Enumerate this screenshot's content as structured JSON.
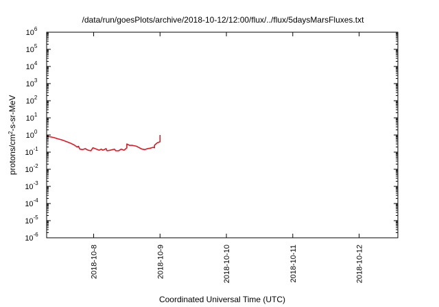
{
  "chart_data": {
    "type": "line",
    "title": "/data/run/goesPlots/archive/2018-10-12/12:00/flux/../flux/5daysMarsFluxes.txt",
    "xlabel": "Coordinated Universal Time (UTC)",
    "ylabel_parts": {
      "base": "protons/cm",
      "sup": "2",
      "rest": "-s-sr-MeV"
    },
    "y_scale": "log",
    "ylim": [
      1e-06,
      1000000.0
    ],
    "y_ticks": [
      {
        "value": 1e-06,
        "base": "10",
        "exp": "-6"
      },
      {
        "value": 1e-05,
        "base": "10",
        "exp": "-5"
      },
      {
        "value": 0.0001,
        "base": "10",
        "exp": "-4"
      },
      {
        "value": 0.001,
        "base": "10",
        "exp": "-3"
      },
      {
        "value": 0.01,
        "base": "10",
        "exp": "-2"
      },
      {
        "value": 0.1,
        "base": "10",
        "exp": "-1"
      },
      {
        "value": 1,
        "base": "10",
        "exp": "0"
      },
      {
        "value": 10,
        "base": "10",
        "exp": "1"
      },
      {
        "value": 100,
        "base": "10",
        "exp": "2"
      },
      {
        "value": 1000,
        "base": "10",
        "exp": "3"
      },
      {
        "value": 10000,
        "base": "10",
        "exp": "4"
      },
      {
        "value": 100000,
        "base": "10",
        "exp": "5"
      },
      {
        "value": 1000000,
        "base": "10",
        "exp": "6"
      }
    ],
    "xlim": [
      "2018-10-07 07:00",
      "2018-10-12 14:00"
    ],
    "x_ticks": [
      {
        "value": "2018-10-08 00:00",
        "label": "2018-10-8"
      },
      {
        "value": "2018-10-09 00:00",
        "label": "2018-10-9"
      },
      {
        "value": "2018-10-10 00:00",
        "label": "2018-10-10"
      },
      {
        "value": "2018-10-11 00:00",
        "label": "2018-10-11"
      },
      {
        "value": "2018-10-12 00:00",
        "label": "2018-10-12"
      }
    ],
    "grid": false,
    "series": [
      {
        "color": "#e8141c",
        "points": [
          [
            "2018-10-07 07:00",
            0.85
          ],
          [
            "2018-10-07 08:00",
            0.8
          ],
          [
            "2018-10-07 09:30",
            0.72
          ],
          [
            "2018-10-07 11:00",
            0.6
          ],
          [
            "2018-10-07 12:30",
            0.52
          ],
          [
            "2018-10-07 14:00",
            0.42
          ],
          [
            "2018-10-07 15:30",
            0.34
          ],
          [
            "2018-10-07 17:00",
            0.26
          ],
          [
            "2018-10-07 18:00",
            0.2
          ],
          [
            "2018-10-07 18:30",
            0.22
          ],
          [
            "2018-10-07 19:00",
            0.15
          ],
          [
            "2018-10-07 20:00",
            0.14
          ],
          [
            "2018-10-07 21:00",
            0.16
          ],
          [
            "2018-10-07 22:00",
            0.13
          ],
          [
            "2018-10-07 23:00",
            0.12
          ],
          [
            "2018-10-07 23:45",
            0.18
          ],
          [
            "2018-10-08 01:00",
            0.15
          ],
          [
            "2018-10-08 02:00",
            0.13
          ],
          [
            "2018-10-08 02:45",
            0.15
          ],
          [
            "2018-10-08 03:20",
            0.13
          ],
          [
            "2018-10-08 04:30",
            0.16
          ],
          [
            "2018-10-08 04:50",
            0.12
          ],
          [
            "2018-10-08 06:00",
            0.13
          ],
          [
            "2018-10-08 07:30",
            0.15
          ],
          [
            "2018-10-08 08:00",
            0.12
          ],
          [
            "2018-10-08 09:00",
            0.12
          ],
          [
            "2018-10-08 10:00",
            0.15
          ],
          [
            "2018-10-08 11:00",
            0.13
          ],
          [
            "2018-10-08 12:00",
            0.18
          ],
          [
            "2018-10-08 12:00",
            0.3
          ],
          [
            "2018-10-08 13:00",
            0.25
          ],
          [
            "2018-10-08 14:00",
            0.25
          ],
          [
            "2018-10-08 15:30",
            0.22
          ],
          [
            "2018-10-08 16:30",
            0.18
          ],
          [
            "2018-10-08 17:30",
            0.15
          ],
          [
            "2018-10-08 18:30",
            0.14
          ],
          [
            "2018-10-08 19:30",
            0.16
          ],
          [
            "2018-10-08 20:30",
            0.17
          ],
          [
            "2018-10-08 21:30",
            0.19
          ],
          [
            "2018-10-08 22:00",
            0.18
          ],
          [
            "2018-10-08 22:00",
            0.25
          ],
          [
            "2018-10-08 22:30",
            0.3
          ],
          [
            "2018-10-08 23:00",
            0.35
          ],
          [
            "2018-10-09 00:00",
            0.4
          ],
          [
            "2018-10-09 00:00",
            1.0
          ]
        ]
      }
    ]
  }
}
